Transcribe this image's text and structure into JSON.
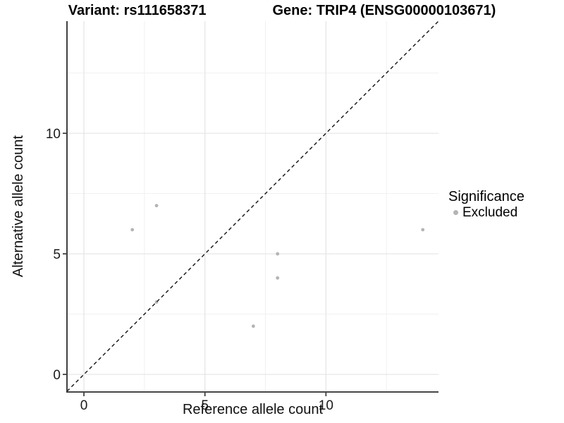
{
  "figure": {
    "title_left": "Variant: rs111658371",
    "title_right": "Gene: TRIP4 (ENSG00000103671)"
  },
  "legend": {
    "title": "Significance",
    "items": [
      {
        "label": "Excluded",
        "color": "#B4B4B4"
      }
    ]
  },
  "chart_data": {
    "type": "scatter",
    "title": "Variant: rs111658371 | Gene: TRIP4 (ENSG00000103671)",
    "xlabel": "Reference allele count",
    "ylabel": "Alternative allele count",
    "xlim": [
      -0.7,
      14.65
    ],
    "ylim": [
      -0.7,
      14.65
    ],
    "x_major_ticks": [
      0,
      5,
      10
    ],
    "y_major_ticks": [
      0,
      5,
      10
    ],
    "x_minor_ticks": [
      2.5,
      7.5,
      12.5
    ],
    "y_minor_ticks": [
      2.5,
      7.5,
      12.5
    ],
    "grid": true,
    "legend_position": "right",
    "series": [
      {
        "name": "Excluded",
        "color": "#B4B4B4",
        "points": [
          {
            "x": 2,
            "y": 6
          },
          {
            "x": 3,
            "y": 7
          },
          {
            "x": 3,
            "y": 3
          },
          {
            "x": 7,
            "y": 2
          },
          {
            "x": 8,
            "y": 4
          },
          {
            "x": 8,
            "y": 5
          },
          {
            "x": 14,
            "y": 6
          }
        ]
      }
    ],
    "reference_line": {
      "type": "identity",
      "style": "dashed",
      "color": "#111111"
    }
  },
  "colors": {
    "background": "#FFFFFF",
    "axis_line": "#2B2B2B",
    "tick_mark": "#2B2B2B",
    "tick_label": "#1A1A1A",
    "grid_major": "#E4E4E4",
    "grid_minor": "#F1F1F1",
    "point": "#B4B4B4",
    "reference_line": "#111111",
    "title": "#000000"
  }
}
